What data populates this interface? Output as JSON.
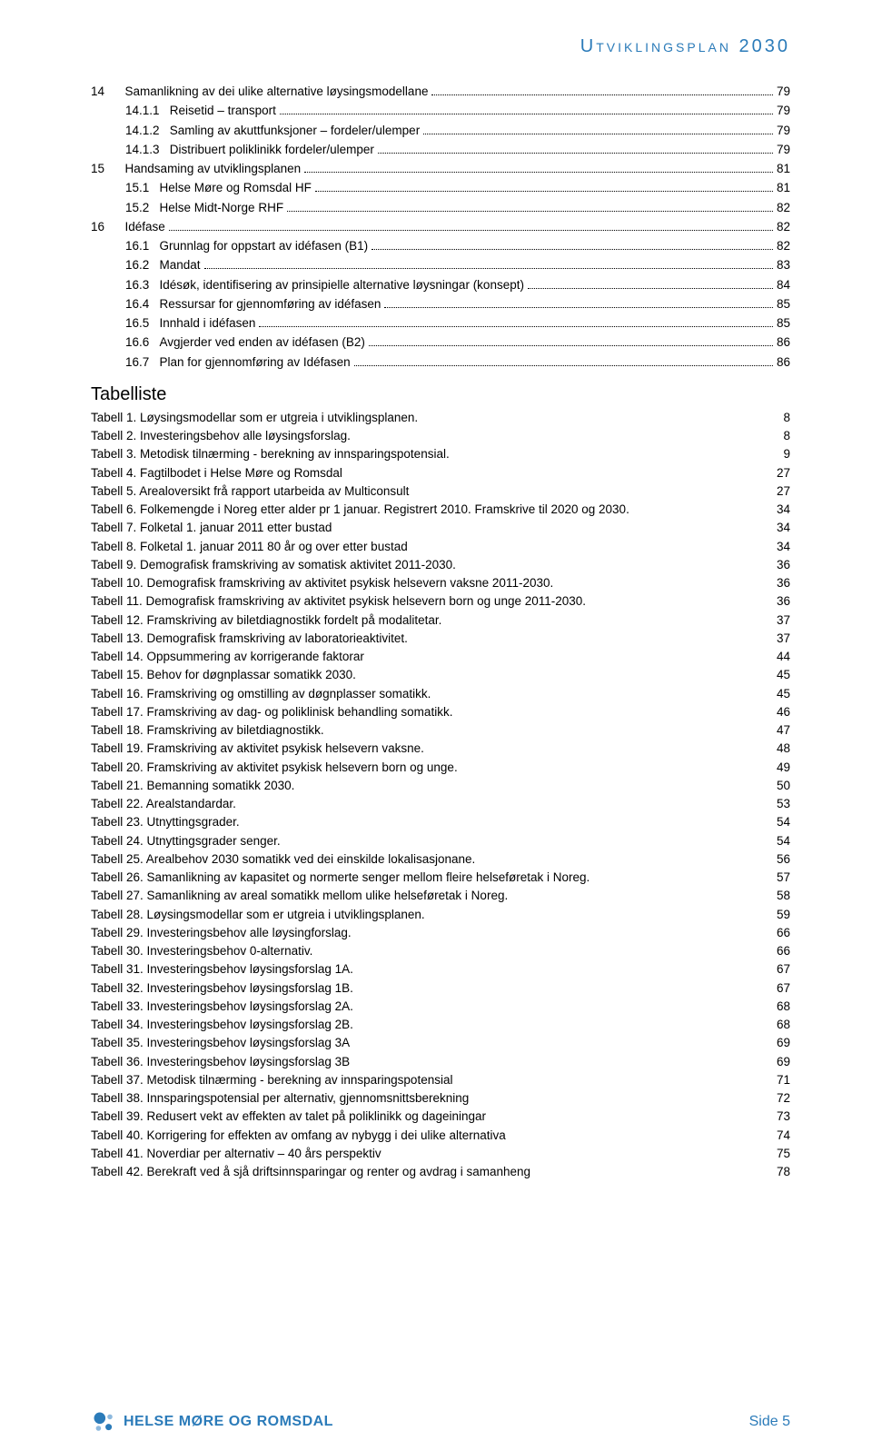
{
  "header": {
    "title": "Utviklingsplan 2030"
  },
  "toc": [
    {
      "indent": 0,
      "num": "14",
      "label": "Samanlikning av dei ulike alternative løysingsmodellane",
      "page": "79"
    },
    {
      "indent": 1,
      "num": "14.1.1",
      "label": "Reisetid – transport",
      "page": "79"
    },
    {
      "indent": 1,
      "num": "14.1.2",
      "label": "Samling av akuttfunksjoner – fordeler/ulemper",
      "page": "79"
    },
    {
      "indent": 1,
      "num": "14.1.3",
      "label": "Distribuert poliklinikk fordeler/ulemper",
      "page": "79"
    },
    {
      "indent": 0,
      "num": "15",
      "label": "Handsaming av utviklingsplanen",
      "page": "81"
    },
    {
      "indent": 1,
      "num": "15.1",
      "label": "Helse Møre og Romsdal HF",
      "page": "81"
    },
    {
      "indent": 1,
      "num": "15.2",
      "label": "Helse Midt-Norge RHF",
      "page": "82"
    },
    {
      "indent": 0,
      "num": "16",
      "label": "Idéfase",
      "page": "82"
    },
    {
      "indent": 1,
      "num": "16.1",
      "label": "Grunnlag for oppstart av idéfasen (B1)",
      "page": "82"
    },
    {
      "indent": 1,
      "num": "16.2",
      "label": "Mandat",
      "page": "83"
    },
    {
      "indent": 1,
      "num": "16.3",
      "label": "Idésøk, identifisering av prinsipielle alternative løysningar (konsept)",
      "page": "84"
    },
    {
      "indent": 1,
      "num": "16.4",
      "label": "Ressursar for gjennomføring av idéfasen",
      "page": "85"
    },
    {
      "indent": 1,
      "num": "16.5",
      "label": "Innhald i idéfasen",
      "page": "85"
    },
    {
      "indent": 1,
      "num": "16.6",
      "label": "Avgjerder ved enden av idéfasen (B2)",
      "page": "86"
    },
    {
      "indent": 1,
      "num": "16.7",
      "label": "Plan for gjennomføring av Idéfasen",
      "page": "86"
    }
  ],
  "tablelist_heading": "Tabelliste",
  "tables": [
    {
      "label": "Tabell 1. Løysingsmodellar som er utgreia i utviklingsplanen.",
      "page": "8"
    },
    {
      "label": "Tabell 2. Investeringsbehov alle løysingsforslag.",
      "page": "8"
    },
    {
      "label": "Tabell 3. Metodisk tilnærming - berekning av innsparingspotensial.",
      "page": "9"
    },
    {
      "label": "Tabell 4. Fagtilbodet i Helse Møre og Romsdal",
      "page": "27"
    },
    {
      "label": "Tabell 5. Arealoversikt frå rapport utarbeida av Multiconsult",
      "page": "27"
    },
    {
      "label": "Tabell 6. Folkemengde i Noreg etter alder pr 1 januar. Registrert 2010. Framskrive til 2020 og 2030.",
      "page": "34"
    },
    {
      "label": "Tabell 7.  Folketal 1. januar 2011 etter bustad",
      "page": "34"
    },
    {
      "label": "Tabell 8. Folketal 1. januar 2011 80 år og over etter bustad",
      "page": "34"
    },
    {
      "label": "Tabell 9. Demografisk framskriving av somatisk aktivitet 2011-2030.",
      "page": "36"
    },
    {
      "label": "Tabell 10. Demografisk framskriving av aktivitet psykisk helsevern vaksne 2011-2030.",
      "page": "36"
    },
    {
      "label": "Tabell 11. Demografisk framskriving av aktivitet psykisk helsevern born og unge 2011-2030.",
      "page": "36"
    },
    {
      "label": "Tabell 12. Framskriving av biletdiagnostikk fordelt på modalitetar.",
      "page": "37"
    },
    {
      "label": "Tabell 13. Demografisk framskriving av laboratorieaktivitet.",
      "page": "37"
    },
    {
      "label": "Tabell 14. Oppsummering av korrigerande faktorar",
      "page": "44"
    },
    {
      "label": "Tabell 15. Behov for døgnplassar somatikk 2030.",
      "page": "45"
    },
    {
      "label": "Tabell 16.  Framskriving og omstilling av døgnplasser somatikk.",
      "page": "45"
    },
    {
      "label": "Tabell 17. Framskriving av dag- og poliklinisk behandling somatikk.",
      "page": "46"
    },
    {
      "label": "Tabell 18. Framskriving av biletdiagnostikk.",
      "page": "47"
    },
    {
      "label": "Tabell 19. Framskriving av aktivitet psykisk helsevern vaksne.",
      "page": "48"
    },
    {
      "label": "Tabell 20. Framskriving av aktivitet psykisk helsevern born og unge.",
      "page": "49"
    },
    {
      "label": "Tabell 21. Bemanning somatikk 2030.",
      "page": "50"
    },
    {
      "label": "Tabell 22. Arealstandardar.",
      "page": "53"
    },
    {
      "label": "Tabell 23. Utnyttingsgrader.",
      "page": "54"
    },
    {
      "label": "Tabell 24. Utnyttingsgrader senger.",
      "page": "54"
    },
    {
      "label": "Tabell 25. Arealbehov 2030 somatikk ved dei einskilde lokalisasjonane.",
      "page": "56"
    },
    {
      "label": "Tabell 26. Samanlikning av kapasitet og normerte senger mellom fleire helseføretak i Noreg.",
      "page": "57"
    },
    {
      "label": "Tabell 27. Samanlikning av areal somatikk mellom ulike helseføretak i Noreg.",
      "page": "58"
    },
    {
      "label": "Tabell 28. Løysingsmodellar som er utgreia i utviklingsplanen.",
      "page": "59"
    },
    {
      "label": "Tabell 29. Investeringsbehov alle løysingforslag.",
      "page": "66"
    },
    {
      "label": "Tabell 30. Investeringsbehov 0-alternativ.",
      "page": "66"
    },
    {
      "label": "Tabell 31. Investeringsbehov løysingsforslag 1A.",
      "page": "67"
    },
    {
      "label": "Tabell 32. Investeringsbehov løysingsforslag 1B.",
      "page": "67"
    },
    {
      "label": "Tabell 33. Investeringsbehov løysingsforslag 2A.",
      "page": "68"
    },
    {
      "label": "Tabell 34. Investeringsbehov løysingsforslag 2B.",
      "page": "68"
    },
    {
      "label": "Tabell 35. Investeringsbehov løysingsforslag 3A",
      "page": "69"
    },
    {
      "label": "Tabell 36. Investeringsbehov løysingsforslag 3B",
      "page": "69"
    },
    {
      "label": "Tabell 37. Metodisk tilnærming - berekning av innsparingspotensial",
      "page": "71"
    },
    {
      "label": "Tabell 38. Innsparingspotensial per alternativ, gjennomsnittsberekning",
      "page": "72"
    },
    {
      "label": "Tabell 39. Redusert vekt av effekten av talet på poliklinikk og dageiningar",
      "page": "73"
    },
    {
      "label": "Tabell 40. Korrigering for effekten av omfang av nybygg i dei ulike alternativa",
      "page": "74"
    },
    {
      "label": "Tabell 41. Noverdiar per alternativ – 40 års perspektiv",
      "page": "75"
    },
    {
      "label": "Tabell 42. Berekraft ved å sjå driftsinnsparingar og renter og avdrag i samanheng",
      "page": "78"
    }
  ],
  "footer": {
    "logo_text": "HELSE MØRE OG ROMSDAL",
    "page_label": "Side 5",
    "dot_colors": {
      "large": "#2b7bb9",
      "small1": "#8db9de",
      "small2": "#8db9de",
      "small3": "#2b7bb9"
    }
  },
  "style": {
    "accent_color": "#2b7bb9",
    "body_font_size": 13.5,
    "heading_font_size": 20,
    "background": "#ffffff"
  }
}
